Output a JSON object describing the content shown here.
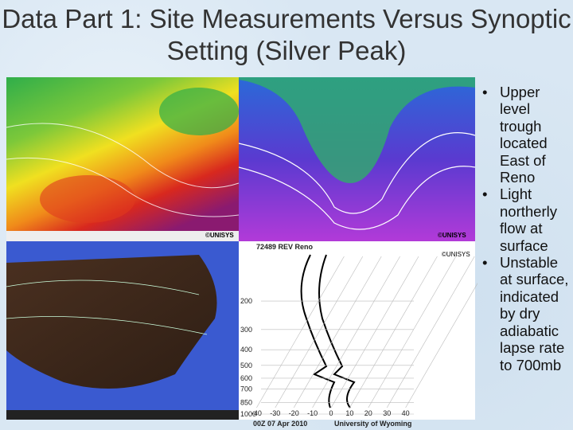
{
  "title": "Data Part 1: Site Measurements Versus Synoptic Setting (Silver Peak)",
  "bullets": [
    "Upper level trough located East of Reno",
    "Light northerly flow at surface",
    "Unstable at surface, indicated by dry adiabatic lapse rate to 700mb"
  ],
  "credit": "©UNISYS",
  "sounding": {
    "station": "72489 REV Reno",
    "time": "00Z 07 Apr 2010",
    "source": "University of Wyoming",
    "pressure_labels": [
      200,
      300,
      400,
      500,
      600,
      700,
      850,
      1000
    ],
    "temperature_labels": [
      -40,
      -30,
      -20,
      -10,
      0,
      10,
      20,
      30,
      40
    ]
  }
}
